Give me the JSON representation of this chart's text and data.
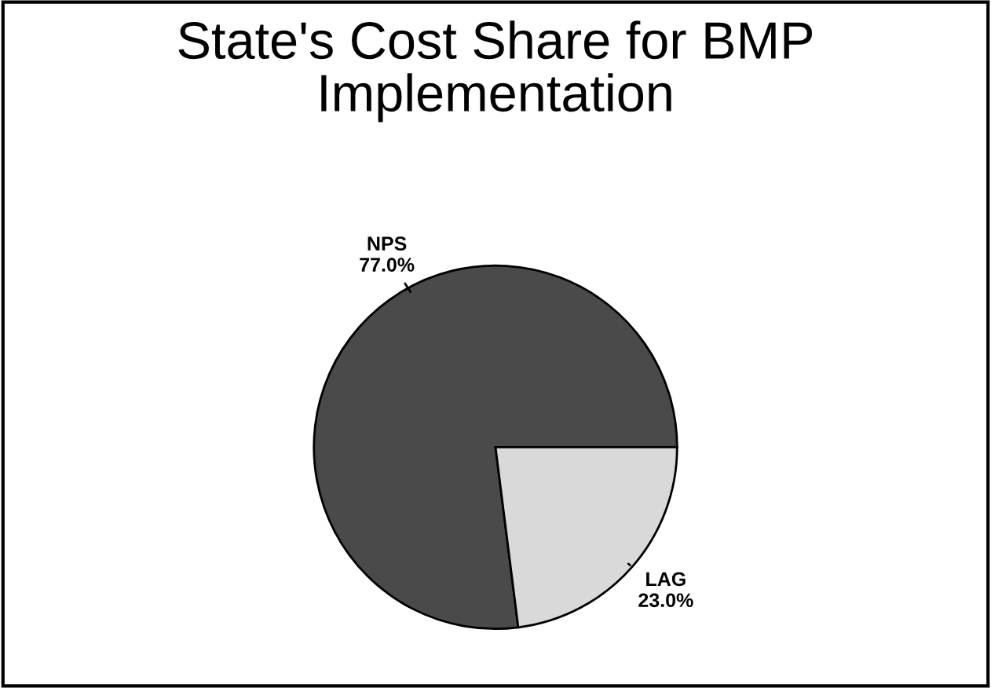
{
  "chart_data": {
    "type": "pie",
    "title": "State's Cost Share for BMP\nImplementation",
    "categories": [
      "NPS",
      "LAG"
    ],
    "values": [
      77.0,
      23.0
    ],
    "colors": [
      "#4a4a4a",
      "#d9d9d9"
    ],
    "value_labels": [
      "77.0%",
      "23.0%"
    ]
  }
}
